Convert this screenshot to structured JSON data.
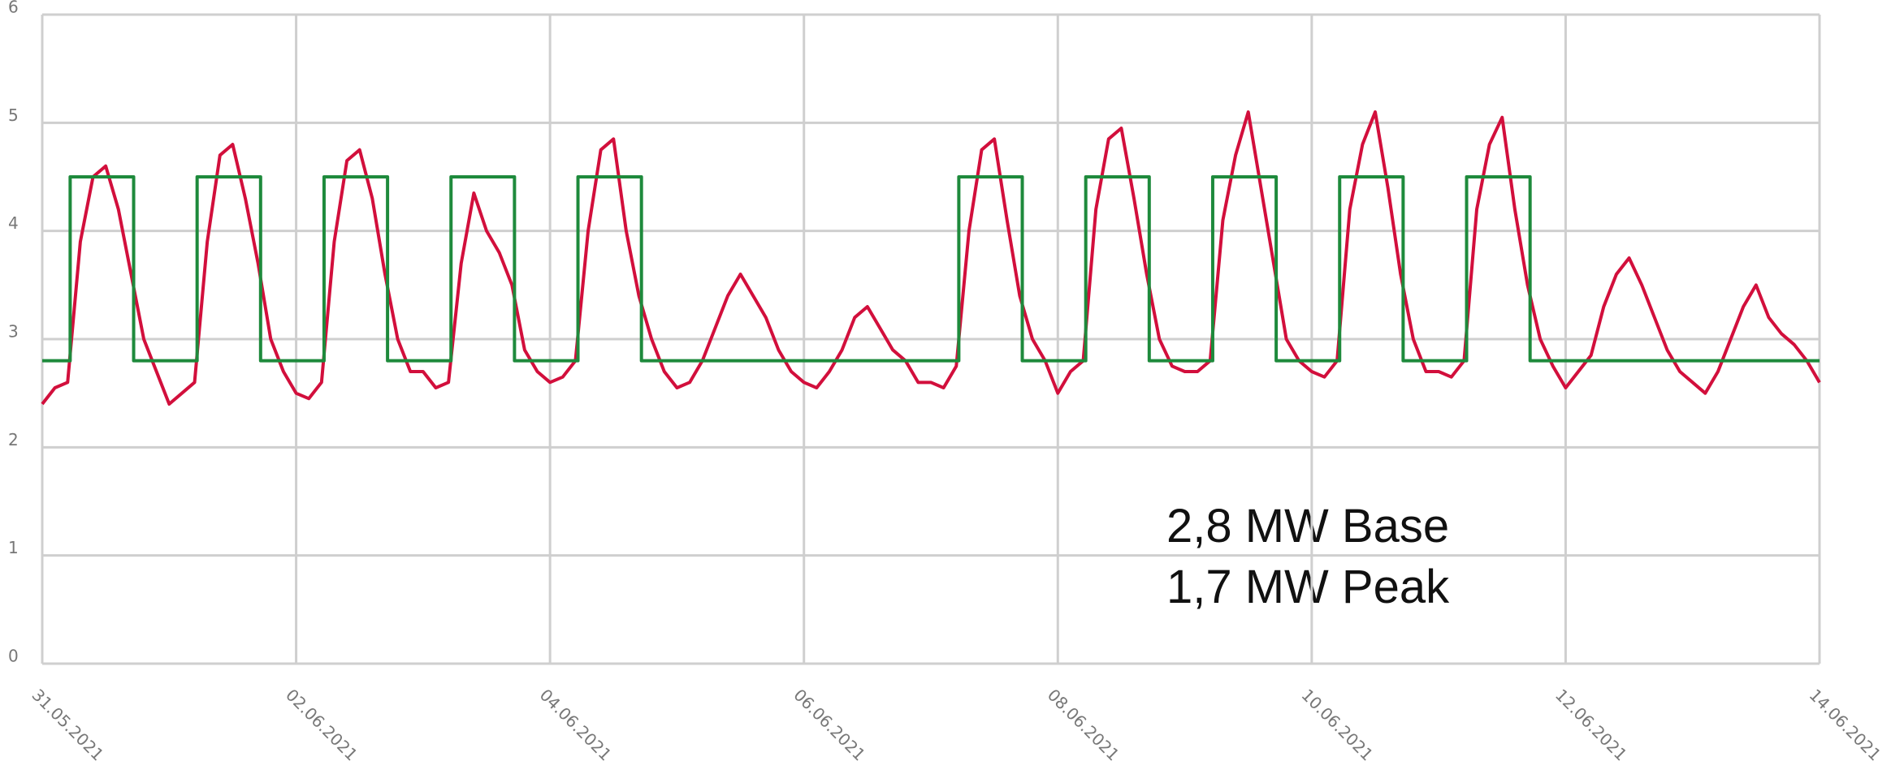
{
  "chart_data": {
    "type": "line",
    "annotations": [
      "2,8 MW Base",
      "1,7 MW Peak"
    ],
    "xlim": [
      0,
      14
    ],
    "xticks": [
      {
        "value": 0,
        "label": "31.05.2021"
      },
      {
        "value": 2,
        "label": "02.06.2021"
      },
      {
        "value": 4,
        "label": "04.06.2021"
      },
      {
        "value": 6,
        "label": "06.06.2021"
      },
      {
        "value": 8,
        "label": "08.06.2021"
      },
      {
        "value": 10,
        "label": "10.06.2021"
      },
      {
        "value": 12,
        "label": "12.06.2021"
      },
      {
        "value": 14,
        "label": "14.06.2021"
      }
    ],
    "ylim": [
      0,
      6
    ],
    "yticks": [
      0,
      1,
      2,
      3,
      4,
      5,
      6
    ],
    "grid": true,
    "series": [
      {
        "color": "#d20f3c",
        "x": [
          0,
          0.1,
          0.2,
          0.3,
          0.4,
          0.5,
          0.6,
          0.7,
          0.8,
          0.9,
          1,
          1.1,
          1.2,
          1.3,
          1.4,
          1.5,
          1.6,
          1.7,
          1.8,
          1.9,
          2,
          2.1,
          2.2,
          2.3,
          2.4,
          2.5,
          2.6,
          2.7,
          2.8,
          2.9,
          3,
          3.1,
          3.2,
          3.3,
          3.4,
          3.5,
          3.6,
          3.7,
          3.8,
          3.9,
          4,
          4.1,
          4.2,
          4.3,
          4.4,
          4.5,
          4.6,
          4.7,
          4.8,
          4.9,
          5,
          5.1,
          5.2,
          5.3,
          5.4,
          5.5,
          5.6,
          5.7,
          5.8,
          5.9,
          6,
          6.1,
          6.2,
          6.3,
          6.4,
          6.5,
          6.6,
          6.7,
          6.8,
          6.9,
          7,
          7.1,
          7.2,
          7.3,
          7.4,
          7.5,
          7.6,
          7.7,
          7.8,
          7.9,
          8,
          8.1,
          8.2,
          8.3,
          8.4,
          8.5,
          8.6,
          8.7,
          8.8,
          8.9,
          9,
          9.1,
          9.2,
          9.3,
          9.4,
          9.5,
          9.6,
          9.7,
          9.8,
          9.9,
          10,
          10.1,
          10.2,
          10.3,
          10.4,
          10.5,
          10.6,
          10.7,
          10.8,
          10.9,
          11,
          11.1,
          11.2,
          11.3,
          11.4,
          11.5,
          11.6,
          11.7,
          11.8,
          11.9,
          12,
          12.1,
          12.2,
          12.3,
          12.4,
          12.5,
          12.6,
          12.7,
          12.8,
          12.9,
          13,
          13.1,
          13.2,
          13.3,
          13.4,
          13.5,
          13.6,
          13.7,
          13.8,
          13.9,
          14
        ],
        "values": [
          2.4,
          2.55,
          2.6,
          3.9,
          4.5,
          4.6,
          4.2,
          3.6,
          3.0,
          2.7,
          2.4,
          2.5,
          2.6,
          3.9,
          4.7,
          4.8,
          4.3,
          3.7,
          3.0,
          2.7,
          2.5,
          2.45,
          2.6,
          3.9,
          4.65,
          4.75,
          4.3,
          3.6,
          3.0,
          2.7,
          2.7,
          2.55,
          2.6,
          3.7,
          4.35,
          4.0,
          3.8,
          3.5,
          2.9,
          2.7,
          2.6,
          2.65,
          2.8,
          4.0,
          4.75,
          4.85,
          4.0,
          3.4,
          3.0,
          2.7,
          2.55,
          2.6,
          2.8,
          3.1,
          3.4,
          3.6,
          3.4,
          3.2,
          2.9,
          2.7,
          2.6,
          2.55,
          2.7,
          2.9,
          3.2,
          3.3,
          3.1,
          2.9,
          2.8,
          2.6,
          2.6,
          2.55,
          2.75,
          4.0,
          4.75,
          4.85,
          4.1,
          3.4,
          3.0,
          2.8,
          2.5,
          2.7,
          2.8,
          4.2,
          4.85,
          4.95,
          4.3,
          3.6,
          3.0,
          2.75,
          2.7,
          2.7,
          2.8,
          4.1,
          4.7,
          5.1,
          4.4,
          3.7,
          3.0,
          2.8,
          2.7,
          2.65,
          2.8,
          4.2,
          4.8,
          5.1,
          4.4,
          3.6,
          3.0,
          2.7,
          2.7,
          2.65,
          2.8,
          4.2,
          4.8,
          5.05,
          4.2,
          3.5,
          3.0,
          2.75,
          2.55,
          2.7,
          2.85,
          3.3,
          3.6,
          3.75,
          3.5,
          3.2,
          2.9,
          2.7,
          2.6,
          2.5,
          2.7,
          3.0,
          3.3,
          3.5,
          3.2,
          3.05,
          2.95,
          2.8,
          2.6
        ]
      },
      {
        "color": "#1e8a3c",
        "x": [
          0,
          0.22,
          0.22,
          0.72,
          0.72,
          1.22,
          1.22,
          1.72,
          1.72,
          2.22,
          2.22,
          2.72,
          2.72,
          3.22,
          3.22,
          3.72,
          3.72,
          4.22,
          4.22,
          4.72,
          4.72,
          7.22,
          7.22,
          7.72,
          7.72,
          8.22,
          8.22,
          8.72,
          8.72,
          9.22,
          9.22,
          9.72,
          9.72,
          10.22,
          10.22,
          10.72,
          10.72,
          11.22,
          11.22,
          11.72,
          11.72,
          14
        ],
        "values": [
          2.8,
          2.8,
          4.5,
          4.5,
          2.8,
          2.8,
          4.5,
          4.5,
          2.8,
          2.8,
          4.5,
          4.5,
          2.8,
          2.8,
          4.5,
          4.5,
          2.8,
          2.8,
          4.5,
          4.5,
          2.8,
          2.8,
          4.5,
          4.5,
          2.8,
          2.8,
          4.5,
          4.5,
          2.8,
          2.8,
          4.5,
          4.5,
          2.8,
          2.8,
          4.5,
          4.5,
          2.8,
          2.8,
          4.5,
          4.5,
          2.8,
          2.8
        ]
      }
    ]
  }
}
